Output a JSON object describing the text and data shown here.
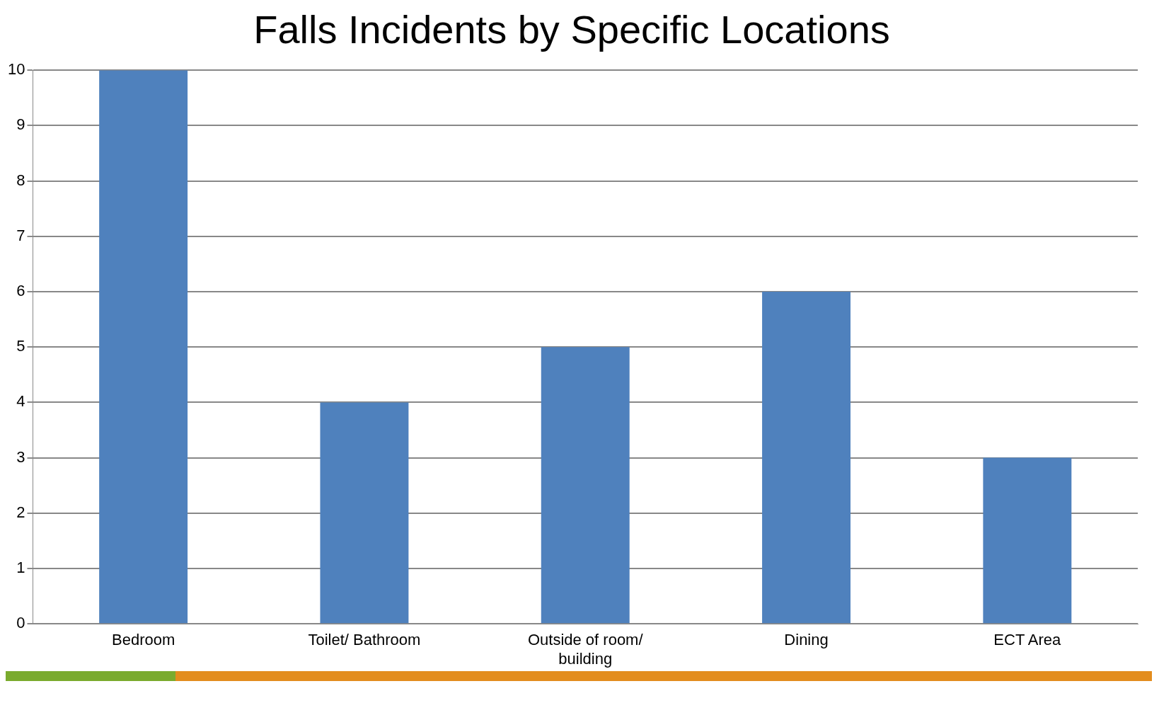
{
  "chart_data": {
    "type": "bar",
    "title": "Falls Incidents by Specific Locations",
    "categories": [
      "Bedroom",
      "Toilet/ Bathroom",
      "Outside of room/ building",
      "Dining",
      "ECT Area"
    ],
    "values": [
      10,
      4,
      5,
      6,
      3
    ],
    "color": "#4f81bd",
    "ylim": [
      0,
      10
    ],
    "yticks": [
      0,
      1,
      2,
      3,
      4,
      5,
      6,
      7,
      8,
      9,
      10
    ],
    "grid": "y"
  }
}
